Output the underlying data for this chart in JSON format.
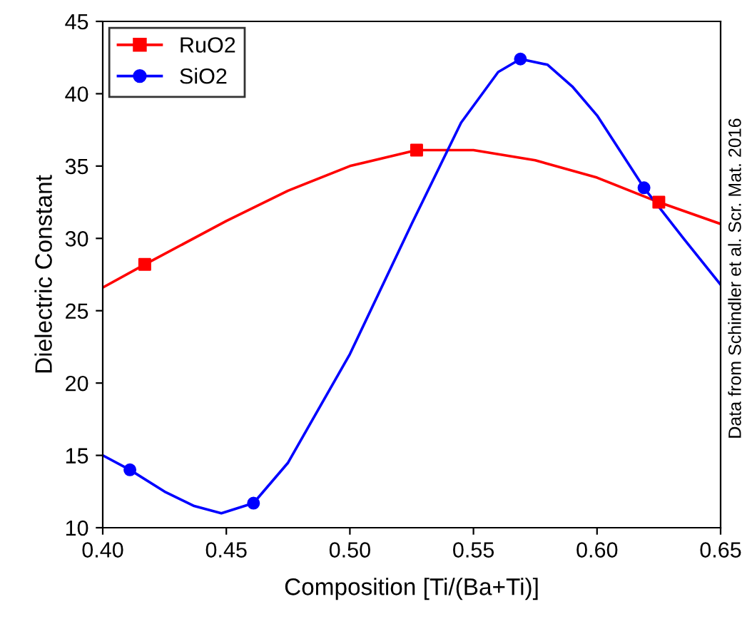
{
  "chart_data": {
    "type": "line",
    "xlabel": "Composition [Ti/(Ba+Ti)]",
    "ylabel": "Dielectric Constant",
    "xlim": [
      0.4,
      0.65
    ],
    "xticks": [
      {
        "value": 0.4,
        "label": "0.40"
      },
      {
        "value": 0.45,
        "label": "0.45"
      },
      {
        "value": 0.5,
        "label": "0.50"
      },
      {
        "value": 0.55,
        "label": "0.55"
      },
      {
        "value": 0.6,
        "label": "0.60"
      },
      {
        "value": 0.65,
        "label": "0.65"
      }
    ],
    "ylim": [
      10,
      45
    ],
    "yticks": [
      10,
      15,
      20,
      25,
      30,
      35,
      40,
      45
    ],
    "grid": false,
    "legend": "top left",
    "series": [
      {
        "color": "#ff0000",
        "marker": "none",
        "x": [
          0.4,
          0.417,
          0.45,
          0.475,
          0.5,
          0.527,
          0.55,
          0.575,
          0.6,
          0.625,
          0.65
        ],
        "values": [
          26.6,
          28.2,
          31.2,
          33.3,
          35.0,
          36.1,
          36.1,
          35.4,
          34.2,
          32.5,
          31.0
        ]
      },
      {
        "color": "#0000ff",
        "marker": "none",
        "x": [
          0.4,
          0.411,
          0.425,
          0.437,
          0.448,
          0.461,
          0.475,
          0.5,
          0.525,
          0.545,
          0.56,
          0.569,
          0.58,
          0.59,
          0.6,
          0.619,
          0.635,
          0.65
        ],
        "values": [
          15.0,
          14.0,
          12.5,
          11.5,
          11.0,
          11.7,
          14.5,
          22.0,
          31.0,
          38.0,
          41.5,
          42.4,
          42.0,
          40.5,
          38.5,
          33.5,
          30.0,
          26.8
        ]
      },
      {
        "type": "scatter",
        "name": "RuO2",
        "color": "#ff0000",
        "marker": "square",
        "x": [
          0.417,
          0.527,
          0.625
        ],
        "values": [
          28.2,
          36.1,
          32.5
        ]
      },
      {
        "type": "scatter",
        "name": "SiO2",
        "color": "#0000ff",
        "marker": "circle",
        "x": [
          0.411,
          0.461,
          0.569,
          0.619
        ],
        "values": [
          14.0,
          11.7,
          42.4,
          33.5
        ]
      }
    ],
    "annotations": [
      "Data from Schindler et al. Scr. Mat. 2016"
    ]
  }
}
